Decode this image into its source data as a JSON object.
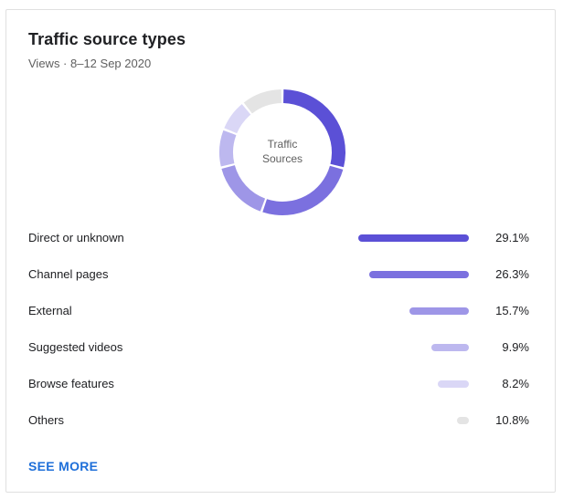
{
  "card": {
    "title": "Traffic source types",
    "subtitle": "Views · 8–12 Sep 2020",
    "see_more": "SEE MORE"
  },
  "chart_data": {
    "type": "pie",
    "title": "Traffic source types",
    "subtitle": "Views · 8–12 Sep 2020",
    "center_label": [
      "Traffic",
      "Sources"
    ],
    "categories": [
      "Direct or unknown",
      "Channel pages",
      "External",
      "Suggested videos",
      "Browse features",
      "Others"
    ],
    "values": [
      29.1,
      26.3,
      15.7,
      9.9,
      8.2,
      10.8
    ],
    "value_labels": [
      "29.1%",
      "26.3%",
      "15.7%",
      "9.9%",
      "8.2%",
      "10.8%"
    ],
    "colors": [
      "#5b50d6",
      "#7b70df",
      "#9e96e7",
      "#bdb8ef",
      "#dad7f6",
      "#e4e4e4"
    ],
    "legend": "right-of-bars"
  }
}
